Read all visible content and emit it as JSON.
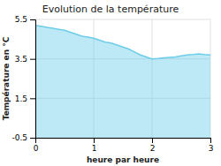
{
  "chart_data": {
    "type": "area",
    "title": "Evolution de la température",
    "xlabel": "heure par heure",
    "ylabel": "Température en °C",
    "x": [
      0,
      0.1,
      0.2,
      0.3,
      0.4,
      0.5,
      0.6,
      0.7,
      0.8,
      0.9,
      1.0,
      1.1,
      1.2,
      1.3,
      1.4,
      1.5,
      1.6,
      1.7,
      1.8,
      1.9,
      2.0,
      2.1,
      2.2,
      2.3,
      2.4,
      2.5,
      2.6,
      2.7,
      2.8,
      2.9,
      3.0
    ],
    "y": [
      5.2,
      5.15,
      5.1,
      5.05,
      5.0,
      4.95,
      4.85,
      4.75,
      4.65,
      4.6,
      4.55,
      4.45,
      4.35,
      4.3,
      4.2,
      4.1,
      4.0,
      3.85,
      3.7,
      3.6,
      3.5,
      3.52,
      3.55,
      3.58,
      3.6,
      3.65,
      3.7,
      3.72,
      3.75,
      3.72,
      3.7
    ],
    "xlim": [
      0,
      3
    ],
    "ylim": [
      -0.5,
      5.5
    ],
    "xticks": [
      0,
      1,
      2,
      3
    ],
    "yticks": [
      -0.5,
      1.5,
      3.5,
      5.5
    ],
    "color": "#6dcde8",
    "grid": true
  }
}
